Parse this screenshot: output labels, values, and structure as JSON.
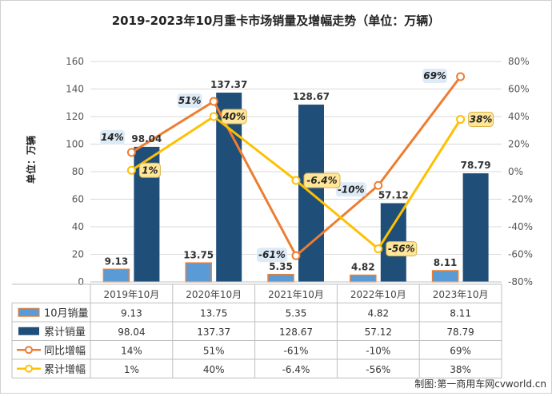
{
  "chart_data": {
    "type": "bar",
    "title": "2019-2023年10月重卡市场销量及增幅走势（单位：万辆）",
    "ylabel": "单位：万辆",
    "source": "制图:第一商用车网cvworld.cn",
    "categories": [
      "2019年10月",
      "2020年10月",
      "2021年10月",
      "2022年10月",
      "2023年10月"
    ],
    "ylim_left": [
      0,
      160
    ],
    "yticks_left": [
      0,
      20,
      40,
      60,
      80,
      100,
      120,
      140,
      160
    ],
    "ylim_right": [
      -80,
      80
    ],
    "yticks_right": [
      "-80%",
      "-60%",
      "-40%",
      "-20%",
      "0%",
      "20%",
      "40%",
      "60%",
      "80%"
    ],
    "grid": true,
    "legend": "table-bottom",
    "series": [
      {
        "name": "10月销量",
        "kind": "bar",
        "axis": "left",
        "color": "#5b9bd5",
        "values": [
          9.13,
          13.75,
          5.35,
          4.82,
          8.11
        ],
        "labels": [
          "9.13",
          "13.75",
          "5.35",
          "4.82",
          "8.11"
        ]
      },
      {
        "name": "累计销量",
        "kind": "bar",
        "axis": "left",
        "color": "#1f4e79",
        "values": [
          98.04,
          137.37,
          128.67,
          57.12,
          78.79
        ],
        "labels": [
          "98.04",
          "137.37",
          "128.67",
          "57.12",
          "78.79"
        ]
      },
      {
        "name": "同比增幅",
        "kind": "line",
        "axis": "right",
        "color": "#ed7d31",
        "values": [
          14,
          51,
          -61,
          -10,
          69
        ],
        "labels": [
          "14%",
          "51%",
          "-61%",
          "-10%",
          "69%"
        ]
      },
      {
        "name": "累计增幅",
        "kind": "line",
        "axis": "right",
        "color": "#ffc000",
        "values": [
          1,
          40,
          -6.4,
          -56,
          38
        ],
        "labels": [
          "1%",
          "40%",
          "-6.4%",
          "-56%",
          "38%"
        ]
      }
    ]
  }
}
